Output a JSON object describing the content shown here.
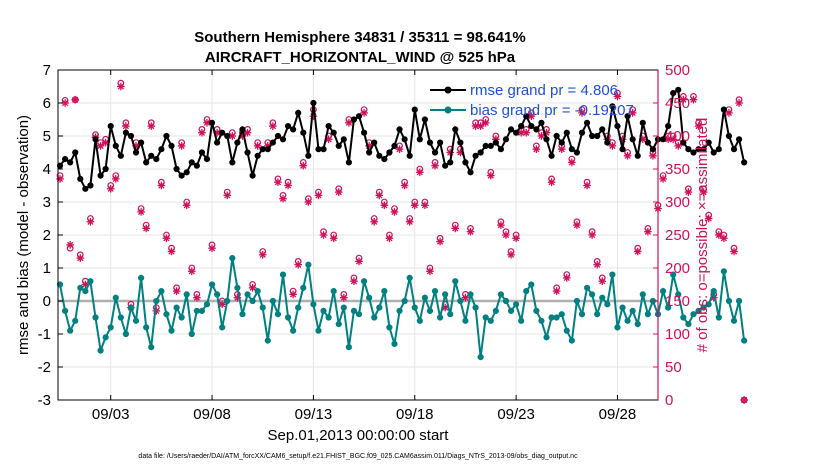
{
  "chart_data": {
    "type": "line",
    "title_line1": "Southern Hemisphere 34831 / 35311 = 98.641%",
    "title_line2": "AIRCRAFT_HORIZONTAL_WIND @ 525 hPa",
    "ylabel_left": "rmse and bias (model - observation)",
    "ylabel_right": "# of obs: o=possible; ×=assimilated",
    "xlabel": "Sep.01,2013 00:00:00 start",
    "footer": "data file: /Users/raeder/DAI/ATM_forcXX/CAM6_setup/f.e21.FHIST_BGC.f09_025.CAM6assim.011/Diags_NTrS_2013-09/obs_diag_output.nc",
    "xlim": [
      0.4,
      30.0
    ],
    "ylim_left": [
      -3,
      7
    ],
    "ylim_right": [
      0,
      500
    ],
    "left_ticks": [
      -3,
      -2,
      -1,
      0,
      1,
      2,
      3,
      4,
      5,
      6,
      7
    ],
    "left_tick_labels": [
      "-3",
      "-2",
      "-1",
      "0",
      "1",
      "2",
      "3",
      "4",
      "5",
      "6",
      "7"
    ],
    "right_ticks": [
      0,
      50,
      100,
      150,
      200,
      250,
      300,
      350,
      400,
      450,
      500
    ],
    "right_tick_labels": [
      "0",
      "50",
      "100",
      "150",
      "200",
      "250",
      "300",
      "350",
      "400",
      "450",
      "500"
    ],
    "x_ticks": [
      3,
      8,
      13,
      18,
      23,
      28
    ],
    "x_tick_labels": [
      "09/03",
      "09/08",
      "09/13",
      "09/18",
      "09/23",
      "09/28"
    ],
    "colors": {
      "rmse": "#000000",
      "bias": "#008080",
      "obs": "#d0105a",
      "zero_line": "#b0b0b0",
      "legend_text": "#1f4fd8"
    },
    "legend": [
      {
        "name": "rmse grand pr = 4.806"
      },
      {
        "name": "bias grand pr = -0.19207"
      }
    ],
    "x_start": 0.5,
    "x_step": 0.25,
    "rmse": [
      4.1,
      4.3,
      4.2,
      4.5,
      3.7,
      3.4,
      3.5,
      4.9,
      3.8,
      4.0,
      5.3,
      4.7,
      4.4,
      5.1,
      5.0,
      4.5,
      4.8,
      4.2,
      4.4,
      4.3,
      4.6,
      5.0,
      4.7,
      4.0,
      3.8,
      3.9,
      4.2,
      4.1,
      4.5,
      4.3,
      5.4,
      4.8,
      5.1,
      5.0,
      4.2,
      4.8,
      5.2,
      4.5,
      3.8,
      4.4,
      4.6,
      4.6,
      4.8,
      5.0,
      4.9,
      5.3,
      5.2,
      5.7,
      5.1,
      4.4,
      6.0,
      4.6,
      4.6,
      5.3,
      5.1,
      4.7,
      4.9,
      4.2,
      5.5,
      5.6,
      5.1,
      4.5,
      4.8,
      4.4,
      4.3,
      4.5,
      4.7,
      5.2,
      4.9,
      4.4,
      5.8,
      4.9,
      5.5,
      4.8,
      4.5,
      4.8,
      4.1,
      4.2,
      5.2,
      4.8,
      4.2,
      3.9,
      4.4,
      4.5,
      4.7,
      4.7,
      4.8,
      4.6,
      4.9,
      5.2,
      5.1,
      5.3,
      5.6,
      5.3,
      5.2,
      5.4,
      4.9,
      4.4,
      5.0,
      4.8,
      5.1,
      4.6,
      4.5,
      5.1,
      5.4,
      5.0,
      5.0,
      5.2,
      4.8,
      5.9,
      5.3,
      4.6,
      5.6,
      4.9,
      4.4,
      5.4,
      4.8,
      4.6,
      4.9,
      4.9,
      5.3,
      6.3,
      6.4,
      4.8,
      4.6,
      4.5,
      4.6,
      4.6,
      4.8,
      4.5,
      4.6,
      5.8,
      5.0,
      4.6,
      4.9,
      4.2
    ],
    "bias": [
      0.5,
      -0.3,
      -0.9,
      -0.6,
      0.4,
      0.3,
      0.6,
      -0.5,
      -1.5,
      -1.1,
      -0.8,
      0.1,
      -0.5,
      -1.0,
      -0.2,
      -0.6,
      0.7,
      -0.8,
      -1.4,
      0.0,
      0.3,
      -0.4,
      -0.9,
      -0.2,
      -0.5,
      0.2,
      -1.0,
      -0.3,
      -0.3,
      -0.1,
      0.5,
      0.2,
      -0.8,
      0.0,
      1.3,
      0.4,
      -0.4,
      0.2,
      0.0,
      0.3,
      -0.2,
      -1.2,
      0.0,
      -0.4,
      0.8,
      -0.5,
      -0.9,
      -0.2,
      0.4,
      1.1,
      -0.1,
      -0.9,
      -0.3,
      -0.5,
      0.3,
      -0.7,
      -0.2,
      -1.4,
      -0.3,
      -0.4,
      0.6,
      0.1,
      -0.5,
      -0.2,
      0.3,
      -0.8,
      -1.3,
      -0.3,
      0.0,
      0.7,
      -0.2,
      -0.6,
      0.1,
      -0.3,
      0.3,
      -0.5,
      0.2,
      -0.4,
      0.6,
      0.0,
      -0.6,
      0.2,
      -0.2,
      -1.7,
      -0.5,
      -0.6,
      -0.3,
      0.2,
      0.0,
      -0.3,
      -0.1,
      -0.6,
      0.3,
      0.5,
      -0.3,
      -0.6,
      -1.1,
      -0.5,
      -0.5,
      -0.4,
      -0.9,
      -1.2,
      0.0,
      -0.4,
      0.4,
      0.2,
      -0.4,
      0.1,
      -0.1,
      0.8,
      -0.8,
      -0.2,
      -0.6,
      -0.3,
      -0.7,
      0.2,
      -0.4,
      0.0,
      -0.4,
      0.3,
      -0.2,
      0.8,
      0.2,
      -0.5,
      -0.7,
      -0.4,
      -0.3,
      -0.2,
      -0.1,
      0.3,
      -0.5,
      0.9,
      0.0,
      -0.6,
      0.0,
      -1.2
    ],
    "obs_possible": [
      340,
      454,
      230,
      455,
      220,
      180,
      275,
      402,
      390,
      395,
      325,
      340,
      480,
      420,
      145,
      390,
      290,
      265,
      420,
      140,
      330,
      250,
      230,
      170,
      390,
      300,
      200,
      160,
      410,
      425,
      235,
      410,
      150,
      315,
      405,
      160,
      405,
      410,
      175,
      390,
      225,
      390,
      420,
      335,
      310,
      330,
      165,
      210,
      360,
      305,
      440,
      315,
      255,
      400,
      250,
      320,
      160,
      425,
      185,
      215,
      440,
      390,
      275,
      315,
      300,
      250,
      290,
      385,
      330,
      275,
      300,
      350,
      300,
      200,
      360,
      245,
      145,
      380,
      265,
      380,
      160,
      260,
      420,
      420,
      425,
      345,
      400,
      270,
      255,
      225,
      250,
      410,
      410,
      435,
      385,
      405,
      410,
      335,
      170,
      385,
      190,
      365,
      270,
      440,
      330,
      255,
      210,
      185,
      400,
      390,
      465,
      400,
      375,
      440,
      230,
      400,
      260,
      375,
      295,
      340,
      400,
      400,
      390,
      460,
      320,
      460,
      420,
      320,
      280,
      160,
      255,
      250,
      440,
      230,
      455,
      0
    ],
    "obs_assimilated": [
      335,
      450,
      235,
      455,
      215,
      175,
      270,
      398,
      385,
      390,
      320,
      335,
      475,
      415,
      140,
      385,
      285,
      260,
      415,
      135,
      325,
      245,
      225,
      165,
      385,
      295,
      195,
      155,
      405,
      420,
      230,
      405,
      145,
      310,
      400,
      155,
      400,
      405,
      170,
      385,
      220,
      385,
      415,
      330,
      305,
      325,
      160,
      205,
      355,
      300,
      430,
      310,
      250,
      395,
      245,
      315,
      155,
      420,
      180,
      210,
      435,
      385,
      270,
      310,
      295,
      245,
      285,
      380,
      325,
      270,
      295,
      345,
      295,
      195,
      355,
      240,
      140,
      375,
      260,
      375,
      155,
      255,
      415,
      415,
      420,
      340,
      395,
      265,
      250,
      220,
      245,
      405,
      405,
      430,
      380,
      400,
      405,
      330,
      165,
      380,
      185,
      360,
      265,
      435,
      325,
      250,
      205,
      180,
      395,
      385,
      460,
      395,
      370,
      435,
      225,
      395,
      255,
      370,
      290,
      335,
      395,
      395,
      385,
      455,
      315,
      455,
      415,
      315,
      275,
      155,
      250,
      245,
      435,
      225,
      450,
      0
    ]
  }
}
